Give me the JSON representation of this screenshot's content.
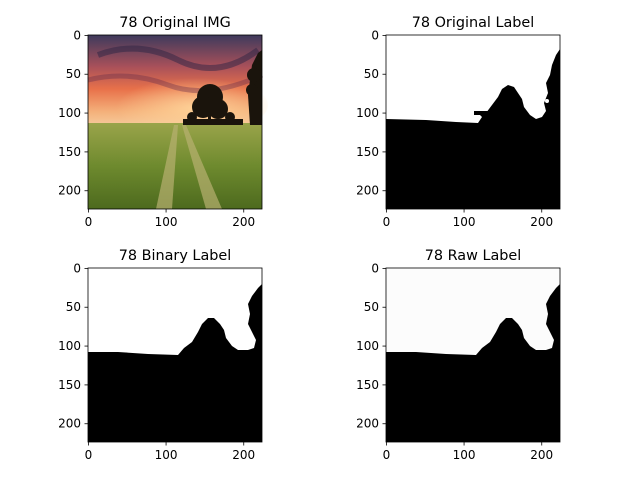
{
  "figure": {
    "panels": [
      {
        "title": "78 Original IMG",
        "kind": "photo",
        "x_ticks": [
          "0",
          "100",
          "200"
        ],
        "y_ticks": [
          "0",
          "50",
          "100",
          "150",
          "200"
        ]
      },
      {
        "title": "78 Original Label",
        "kind": "label",
        "x_ticks": [
          "0",
          "100",
          "200"
        ],
        "y_ticks": [
          "0",
          "50",
          "100",
          "150",
          "200"
        ]
      },
      {
        "title": "78 Binary Label",
        "kind": "label",
        "x_ticks": [
          "0",
          "100",
          "200"
        ],
        "y_ticks": [
          "0",
          "50",
          "100",
          "150",
          "200"
        ]
      },
      {
        "title": "78 Raw Label",
        "kind": "label",
        "x_ticks": [
          "0",
          "100",
          "200"
        ],
        "y_ticks": [
          "0",
          "50",
          "100",
          "150",
          "200"
        ]
      }
    ],
    "colors": {
      "foreground_label": "#000000",
      "background_label": "#ffffff",
      "sky_top": "#4a3a5e",
      "sky_glow": "#e8714a",
      "field": "#6e8a2e"
    }
  }
}
